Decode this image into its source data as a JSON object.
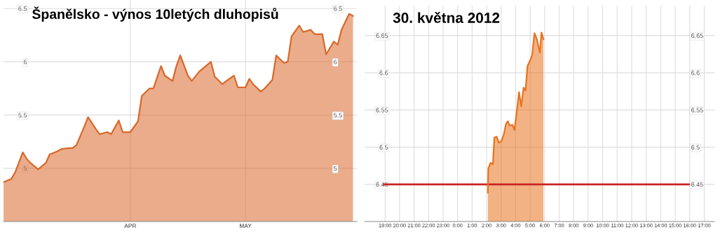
{
  "chart_data": [
    {
      "type": "area",
      "title": "Španělsko - výnos 10letých dluhopisů",
      "x": [
        "2012-02-28",
        "2012-03-01",
        "2012-03-02",
        "2012-03-04",
        "2012-03-05",
        "2012-03-06",
        "2012-03-08",
        "2012-03-10",
        "2012-03-11",
        "2012-03-13",
        "2012-03-14",
        "2012-03-16",
        "2012-03-17",
        "2012-03-18",
        "2012-03-20",
        "2012-03-21",
        "2012-03-23",
        "2012-03-24",
        "2012-03-26",
        "2012-03-27",
        "2012-03-29",
        "2012-03-30",
        "2012-04-01",
        "2012-04-03",
        "2012-04-04",
        "2012-04-06",
        "2012-04-07",
        "2012-04-09",
        "2012-04-10",
        "2012-04-12",
        "2012-04-13",
        "2012-04-14",
        "2012-04-16",
        "2012-04-17",
        "2012-04-19",
        "2012-04-20",
        "2012-04-22",
        "2012-04-23",
        "2012-04-25",
        "2012-04-26",
        "2012-04-28",
        "2012-04-29",
        "2012-05-01",
        "2012-05-02",
        "2012-05-03",
        "2012-05-05",
        "2012-05-06",
        "2012-05-08",
        "2012-05-09",
        "2012-05-11",
        "2012-05-12",
        "2012-05-13",
        "2012-05-15",
        "2012-05-16",
        "2012-05-18",
        "2012-05-19",
        "2012-05-21",
        "2012-05-22",
        "2012-05-24",
        "2012-05-25",
        "2012-05-26",
        "2012-05-28",
        "2012-05-29"
      ],
      "series": [
        {
          "color": "#d9682a",
          "values": [
            4.87,
            4.9,
            4.96,
            5.15,
            5.09,
            5.05,
            4.99,
            5.05,
            5.13,
            5.16,
            5.18,
            5.19,
            5.19,
            5.22,
            5.39,
            5.48,
            5.37,
            5.32,
            5.34,
            5.32,
            5.45,
            5.34,
            5.34,
            5.44,
            5.68,
            5.75,
            5.75,
            5.96,
            5.87,
            5.82,
            5.96,
            6.06,
            5.87,
            5.82,
            5.91,
            5.94,
            6.0,
            5.86,
            5.79,
            5.82,
            5.87,
            5.76,
            5.76,
            5.84,
            5.79,
            5.72,
            5.75,
            5.83,
            6.06,
            5.99,
            6.0,
            6.24,
            6.34,
            6.28,
            6.3,
            6.26,
            6.26,
            6.07,
            6.19,
            6.16,
            6.3,
            6.45,
            6.43
          ]
        }
      ],
      "xlim": [
        "2012-02-28",
        "2012-05-30"
      ],
      "xticks": [
        {
          "value": "2012-04-01",
          "label": "APR"
        },
        {
          "value": "2012-05-01",
          "label": "MAY"
        }
      ],
      "ylim": [
        4.5,
        6.58
      ],
      "yticks": [
        5,
        5.5,
        6,
        6.5
      ],
      "y2lim": [
        4.5,
        6.58
      ],
      "y2ticks": [
        5,
        5.5,
        6,
        6.5
      ],
      "grid": true,
      "line_style": "solid",
      "marker": "none"
    },
    {
      "type": "area",
      "title": "30. května 2012",
      "x": [
        "2012-05-30T02:05",
        "2012-05-30T02:07",
        "2012-05-30T02:16",
        "2012-05-30T02:26",
        "2012-05-30T02:32",
        "2012-05-30T02:42",
        "2012-05-30T02:50",
        "2012-05-30T03:01",
        "2012-05-30T03:11",
        "2012-05-30T03:20",
        "2012-05-30T03:28",
        "2012-05-30T03:35",
        "2012-05-30T03:47",
        "2012-05-30T03:55",
        "2012-05-30T04:04",
        "2012-05-30T04:14",
        "2012-05-30T04:23",
        "2012-05-30T04:33",
        "2012-05-30T04:41",
        "2012-05-30T04:49",
        "2012-05-30T04:59",
        "2012-05-30T05:08",
        "2012-05-30T05:18",
        "2012-05-30T05:28",
        "2012-05-30T05:40",
        "2012-05-30T05:47",
        "2012-05-30T05:55"
      ],
      "series": [
        {
          "color": "#e8731f",
          "values": [
            6.439,
            6.471,
            6.479,
            6.477,
            6.513,
            6.514,
            6.506,
            6.508,
            6.517,
            6.531,
            6.535,
            6.529,
            6.53,
            6.523,
            6.546,
            6.574,
            6.555,
            6.58,
            6.576,
            6.609,
            6.616,
            6.623,
            6.653,
            6.645,
            6.627,
            6.654,
            6.645
          ]
        }
      ],
      "xlim": [
        "2012-05-29T17:36",
        "2012-05-30T17:42"
      ],
      "xticks": [
        {
          "value": "2012-05-29T19:00",
          "label": "19:00"
        },
        {
          "value": "2012-05-29T20:00",
          "label": "20:00"
        },
        {
          "value": "2012-05-29T21:00",
          "label": "21:00"
        },
        {
          "value": "2012-05-29T22:00",
          "label": "22:00"
        },
        {
          "value": "2012-05-29T23:00",
          "label": "23:00"
        },
        {
          "value": "2012-05-30T00:00",
          "label": "0:00"
        },
        {
          "value": "2012-05-30T01:00",
          "label": "1:00"
        },
        {
          "value": "2012-05-30T02:00",
          "label": "2:00"
        },
        {
          "value": "2012-05-30T03:00",
          "label": "3:00"
        },
        {
          "value": "2012-05-30T04:00",
          "label": "4:00"
        },
        {
          "value": "2012-05-30T05:00",
          "label": "5:00"
        },
        {
          "value": "2012-05-30T06:00",
          "label": "6:00"
        },
        {
          "value": "2012-05-30T07:00",
          "label": "7:00"
        },
        {
          "value": "2012-05-30T08:00",
          "label": "8:00"
        },
        {
          "value": "2012-05-30T09:00",
          "label": "9:00"
        },
        {
          "value": "2012-05-30T10:00",
          "label": "10:00"
        },
        {
          "value": "2012-05-30T11:00",
          "label": "11:00"
        },
        {
          "value": "2012-05-30T12:00",
          "label": "12:00"
        },
        {
          "value": "2012-05-30T13:00",
          "label": "13:00"
        },
        {
          "value": "2012-05-30T14:00",
          "label": "14:00"
        },
        {
          "value": "2012-05-30T15:00",
          "label": "15:00"
        },
        {
          "value": "2012-05-30T16:00",
          "label": "16:00"
        },
        {
          "value": "2012-05-30T17:00",
          "label": "17:00"
        }
      ],
      "ylim": [
        6.4,
        6.69
      ],
      "yticks": [
        6.45,
        6.5,
        6.55,
        6.6,
        6.65
      ],
      "y2lim": [
        6.4,
        6.69
      ],
      "y2ticks": [
        6.45,
        6.5,
        6.55,
        6.6,
        6.65
      ],
      "ref_lines": [
        {
          "axis": "y",
          "value": 6.45,
          "color": "#cc2222",
          "line_style": "solid"
        }
      ],
      "grid": true,
      "line_style": "solid",
      "marker": "none"
    }
  ]
}
